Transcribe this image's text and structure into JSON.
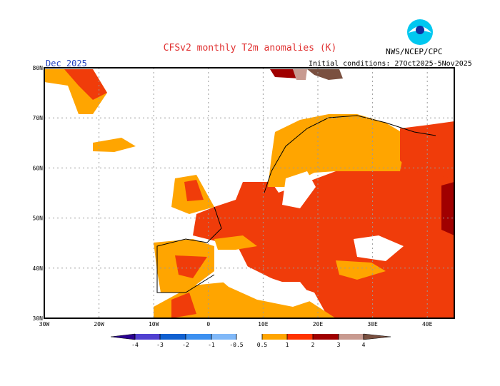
{
  "header": {
    "title": "CFSv2 monthly T2m anomalies (K)",
    "agency": "NWS/NCEP/CPC",
    "logo_text": "NOAA",
    "month": "Dec 2025",
    "initial_conditions": "Initial conditions: 27Oct2025-5Nov2025"
  },
  "map": {
    "region": "Europe",
    "lon_labels": [
      "30W",
      "20W",
      "10W",
      "0",
      "10E",
      "20E",
      "30E",
      "40E"
    ],
    "lat_labels": [
      "80N",
      "70N",
      "60N",
      "50N",
      "40N",
      "30N"
    ],
    "gridlines": "dotted"
  },
  "colorbar": {
    "labels": [
      "-4",
      "-3",
      "-2",
      "-1",
      "-0.5",
      "0.5",
      "1",
      "2",
      "3",
      "4"
    ],
    "colors": [
      "#2a0090",
      "#5040d0",
      "#1060d0",
      "#3c90f0",
      "#80b8f8",
      "#ffffff",
      "#ffa500",
      "#ff3300",
      "#a00000",
      "#c89a90",
      "#7a5040"
    ]
  },
  "colors": {
    "orange": "#ffa500",
    "red": "#f03c0a",
    "dark_red": "#a00000",
    "tan": "#c89a90",
    "brown": "#7a5040"
  }
}
